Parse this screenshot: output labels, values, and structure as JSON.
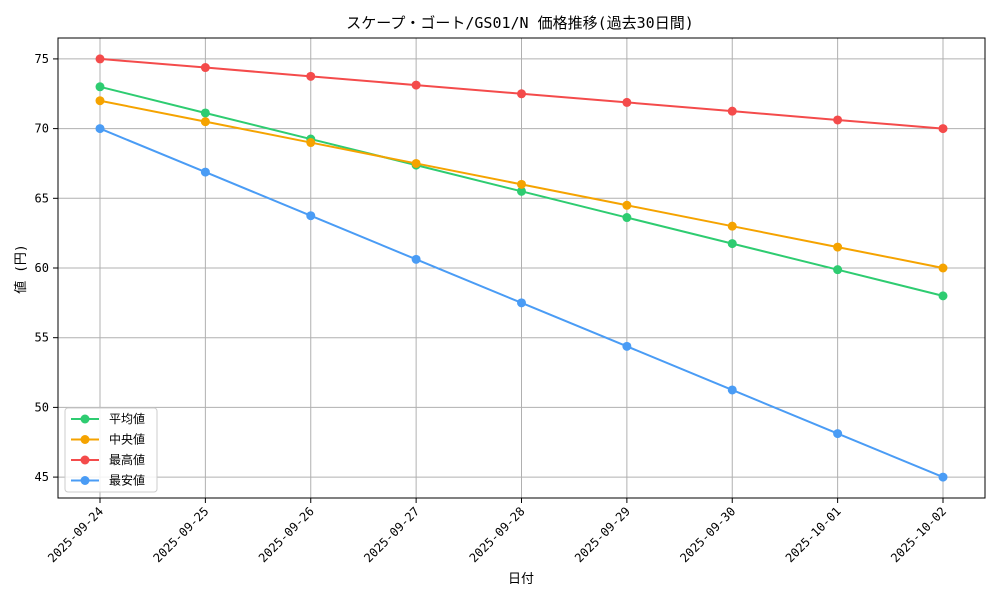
{
  "chart_data": {
    "type": "line",
    "title": "スケープ・ゴート/GS01/N 価格推移(過去30日間)",
    "xlabel": "日付",
    "ylabel": "値 (円)",
    "categories": [
      "2025-09-24",
      "2025-09-25",
      "2025-09-26",
      "2025-09-27",
      "2025-09-28",
      "2025-09-29",
      "2025-09-30",
      "2025-10-01",
      "2025-10-02"
    ],
    "ylim": [
      43.5,
      76.5
    ],
    "yticks": [
      45,
      50,
      55,
      60,
      65,
      70,
      75
    ],
    "grid": true,
    "legend_position": "bottom-left",
    "series": [
      {
        "name": "平均値",
        "color": "#2ecc71",
        "values": [
          73.0,
          71.12,
          69.25,
          67.38,
          65.5,
          63.62,
          61.75,
          59.88,
          58.0
        ]
      },
      {
        "name": "中央値",
        "color": "#f5a300",
        "values": [
          72.0,
          70.5,
          69.0,
          67.5,
          66.0,
          64.5,
          63.0,
          61.5,
          60.0
        ]
      },
      {
        "name": "最高値",
        "color": "#f44b4b",
        "values": [
          75.0,
          74.38,
          73.75,
          73.12,
          72.5,
          71.88,
          71.25,
          70.62,
          70.0
        ]
      },
      {
        "name": "最安値",
        "color": "#4a9cf5",
        "values": [
          70.0,
          66.88,
          63.75,
          60.62,
          57.5,
          54.38,
          51.25,
          48.12,
          45.0
        ]
      }
    ]
  }
}
